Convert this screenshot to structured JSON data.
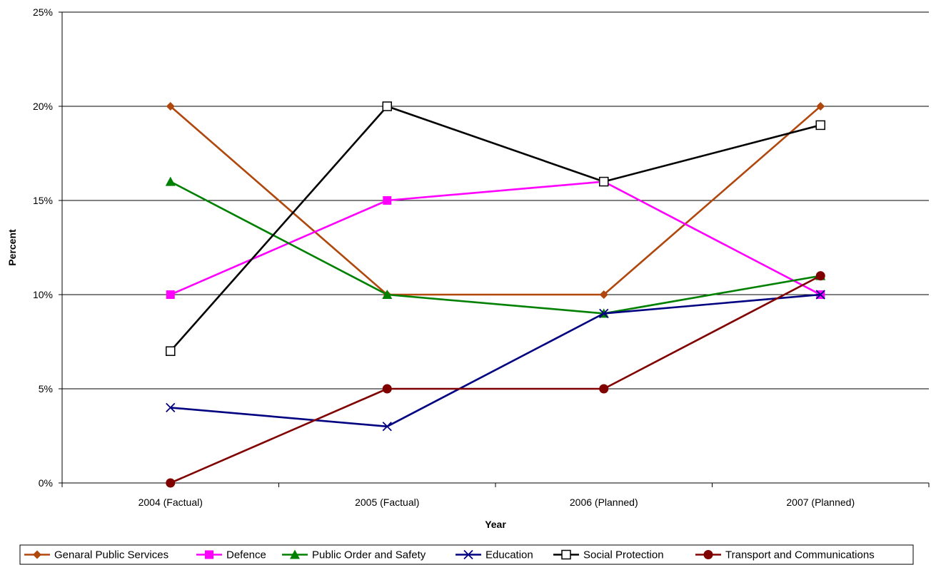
{
  "chart_data": {
    "type": "line",
    "categories": [
      "2004 (Factual)",
      "2005 (Factual)",
      "2006 (Planned)",
      "2007 (Planned)"
    ],
    "xlabel": "Year",
    "ylabel": "Percent",
    "ylim": [
      0,
      25
    ],
    "yticks": [
      0,
      5,
      10,
      15,
      20,
      25
    ],
    "y_tick_labels": [
      "0%",
      "5%",
      "10%",
      "15%",
      "20%",
      "25%"
    ],
    "grid": "horizontal major gridlines",
    "legend_position": "bottom",
    "series": [
      {
        "name": "Genaral Public Services",
        "values": [
          20,
          10,
          10,
          20
        ],
        "color": "#B0470C",
        "marker": "diamond"
      },
      {
        "name": "Defence",
        "values": [
          10,
          15,
          16,
          10
        ],
        "color": "#FF00FF",
        "marker": "square"
      },
      {
        "name": "Public Order and Safety",
        "values": [
          16,
          10,
          9,
          11
        ],
        "color": "#008000",
        "marker": "triangle"
      },
      {
        "name": "Education",
        "values": [
          4,
          3,
          9,
          10
        ],
        "color": "#000080",
        "marker": "x"
      },
      {
        "name": "Social Protection",
        "values": [
          7,
          20,
          16,
          19
        ],
        "color": "#000000",
        "marker": "open-square"
      },
      {
        "name": "Transport and Communications",
        "values": [
          0,
          5,
          5,
          11
        ],
        "color": "#800000",
        "marker": "circle"
      }
    ]
  }
}
